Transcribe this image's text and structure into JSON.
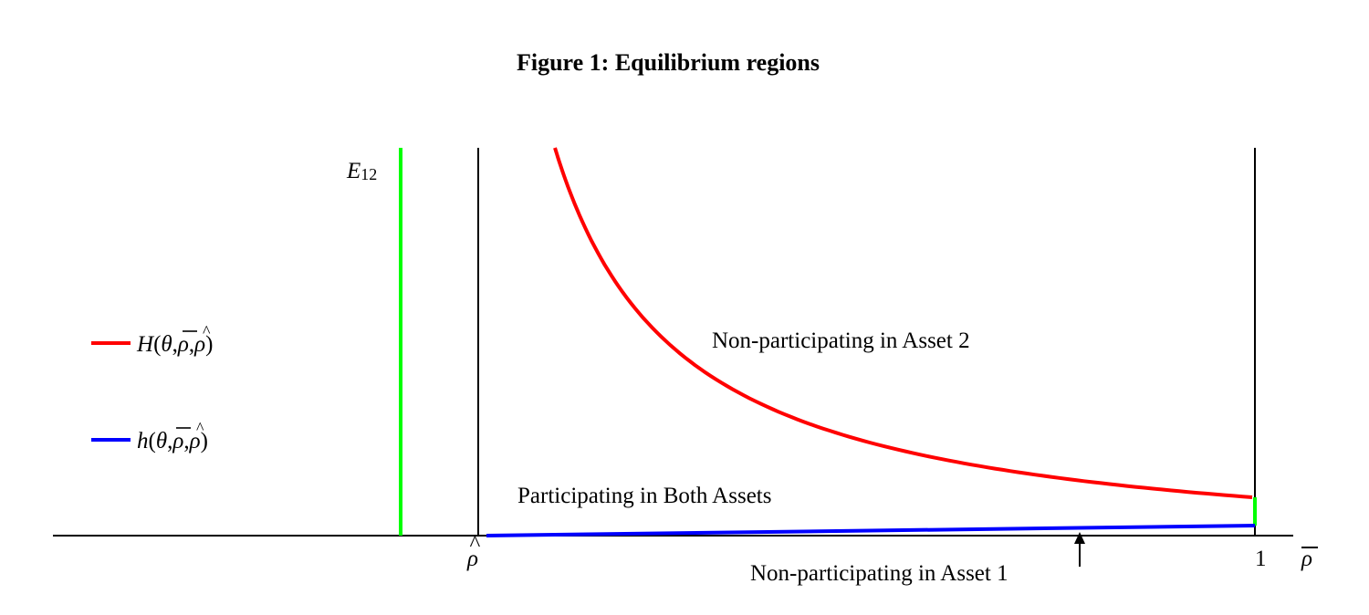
{
  "figure": {
    "title": "Figure 1: Equilibrium regions",
    "region_top": "Non-participating in Asset 2",
    "region_middle": "Participating in Both Assets",
    "region_bottom": "Non-participating in Asset 1",
    "e12_label": "E",
    "e12_sub": "12",
    "rho_hat_label": "ρ",
    "rho_hat_accent": "^",
    "one_label": "1",
    "rho_bar_label": "ρ",
    "colors": {
      "H_curve": "#ff0000",
      "h_curve": "#0000ff",
      "E12_segment": "#00ff00",
      "axes": "#000000"
    }
  },
  "legend": {
    "H": {
      "letter": "H",
      "args": "(θ, ρ, ρ)"
    },
    "h": {
      "letter": "h",
      "args": "(θ, ρ, ρ)"
    }
  },
  "chart_data": {
    "type": "line",
    "xlabel": "ρ̄",
    "x_ticks": [
      "ρ̂",
      "1"
    ],
    "series": [
      {
        "name": "H(θ,ρ̄,ρ̂)",
        "shape": "decreasing convex, diverging near ρ̂, ending above h at ρ̄ = 1"
      },
      {
        "name": "h(θ,ρ̄,ρ̂)",
        "shape": "slowly increasing from 0 at ρ̂ to a small value at ρ̄ = 1"
      }
    ],
    "annotations": [
      "Non-participating in Asset 2",
      "Participating in Both Assets",
      "Non-participating in Asset 1",
      "E12"
    ],
    "grid": false
  }
}
